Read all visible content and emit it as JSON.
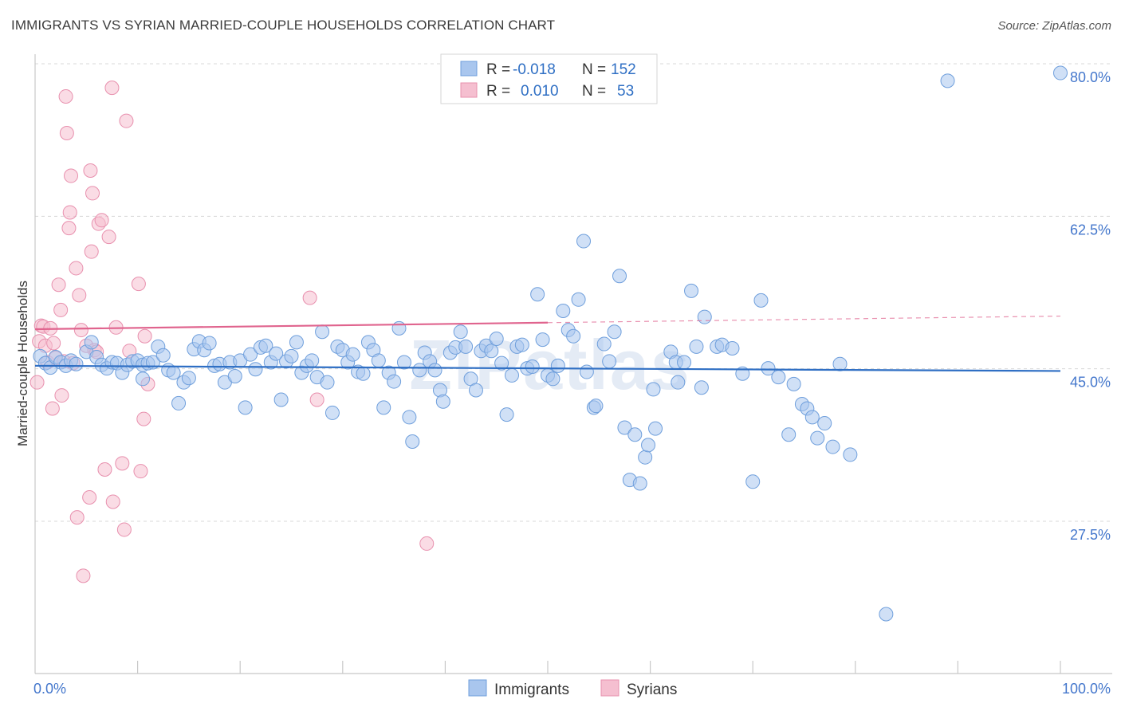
{
  "title": "IMMIGRANTS VS SYRIAN MARRIED-COUPLE HOUSEHOLDS CORRELATION CHART",
  "source": "Source: ZipAtlas.com",
  "colors": {
    "immigrants_fill": "#a9c6ee",
    "immigrants_stroke": "#6f9fdc",
    "immigrants_line": "#2f6fc4",
    "syrians_fill": "#f5bfd0",
    "syrians_stroke": "#e890ae",
    "syrians_line": "#e0648e",
    "grid": "#d8d8d8",
    "tick_label": "#4477cc"
  },
  "legend": {
    "rows": [
      {
        "r_label": "R =",
        "r_value": "-0.018",
        "n_label": "N =",
        "n_value": "152"
      },
      {
        "r_label": "R =",
        "r_value": "0.010",
        "n_label": "N =",
        "n_value": "53"
      }
    ]
  },
  "watermark": "ZIPatlas",
  "chart_data": {
    "type": "scatter",
    "title": "IMMIGRANTS VS SYRIAN MARRIED-COUPLE HOUSEHOLDS CORRELATION CHART",
    "xlabel": "",
    "ylabel": "Married-couple Households",
    "xlim": [
      0,
      100
    ],
    "ylim": [
      10,
      84
    ],
    "x_tick_labels": [
      "0.0%",
      "100.0%"
    ],
    "y_ticks": [
      27.5,
      45.0,
      62.5,
      80.0
    ],
    "y_tick_labels": [
      "27.5%",
      "45.0%",
      "62.5%",
      "80.0%"
    ],
    "legend_position": "top-center",
    "series": [
      {
        "name": "Immigrants",
        "r": -0.018,
        "n": 152,
        "trend": {
          "x": [
            0,
            100
          ],
          "y": [
            46.9,
            46.3
          ],
          "dash_from": null
        },
        "points": [
          [
            0.5,
            48.0
          ],
          [
            1.0,
            47.2
          ],
          [
            1.5,
            46.7
          ],
          [
            2.0,
            47.9
          ],
          [
            2.5,
            47.3
          ],
          [
            3.0,
            46.9
          ],
          [
            3.5,
            47.5
          ],
          [
            4.0,
            47.1
          ],
          [
            5.0,
            48.5
          ],
          [
            5.5,
            49.6
          ],
          [
            6.0,
            47.9
          ],
          [
            6.5,
            47.0
          ],
          [
            7.0,
            46.6
          ],
          [
            7.5,
            47.3
          ],
          [
            8.0,
            47.2
          ],
          [
            8.5,
            46.1
          ],
          [
            9.0,
            47.0
          ],
          [
            9.5,
            47.4
          ],
          [
            10.0,
            47.5
          ],
          [
            10.5,
            47.0
          ],
          [
            10.5,
            45.4
          ],
          [
            11.0,
            47.2
          ],
          [
            11.5,
            47.3
          ],
          [
            12.0,
            49.1
          ],
          [
            12.5,
            48.1
          ],
          [
            13.0,
            46.4
          ],
          [
            13.5,
            46.1
          ],
          [
            14.0,
            42.6
          ],
          [
            14.5,
            45.0
          ],
          [
            15.0,
            45.5
          ],
          [
            15.5,
            48.8
          ],
          [
            16.0,
            49.7
          ],
          [
            16.5,
            48.7
          ],
          [
            17.0,
            49.5
          ],
          [
            17.5,
            46.9
          ],
          [
            18.0,
            47.1
          ],
          [
            18.5,
            45.0
          ],
          [
            19.0,
            47.3
          ],
          [
            19.5,
            45.7
          ],
          [
            20.0,
            47.5
          ],
          [
            20.5,
            42.1
          ],
          [
            21.0,
            48.2
          ],
          [
            21.5,
            46.5
          ],
          [
            22.0,
            49.0
          ],
          [
            22.5,
            49.2
          ],
          [
            23.0,
            47.3
          ],
          [
            23.5,
            48.3
          ],
          [
            24.0,
            43.0
          ],
          [
            24.5,
            47.4
          ],
          [
            25.0,
            48.0
          ],
          [
            25.5,
            49.6
          ],
          [
            26.0,
            46.1
          ],
          [
            26.5,
            46.9
          ],
          [
            27.0,
            47.5
          ],
          [
            27.5,
            45.6
          ],
          [
            28.0,
            50.8
          ],
          [
            28.5,
            45.0
          ],
          [
            29.0,
            41.5
          ],
          [
            29.5,
            49.1
          ],
          [
            30.0,
            48.7
          ],
          [
            30.5,
            47.3
          ],
          [
            31.0,
            48.2
          ],
          [
            31.5,
            46.2
          ],
          [
            32.0,
            46.0
          ],
          [
            32.5,
            49.6
          ],
          [
            33.0,
            48.7
          ],
          [
            33.5,
            47.5
          ],
          [
            34.0,
            42.1
          ],
          [
            34.5,
            46.1
          ],
          [
            35.0,
            45.1
          ],
          [
            35.5,
            51.2
          ],
          [
            36.0,
            47.3
          ],
          [
            36.5,
            41.0
          ],
          [
            36.8,
            38.2
          ],
          [
            37.5,
            46.4
          ],
          [
            38.0,
            48.4
          ],
          [
            38.5,
            47.4
          ],
          [
            39.0,
            46.4
          ],
          [
            39.5,
            44.1
          ],
          [
            39.8,
            42.8
          ],
          [
            40.5,
            48.4
          ],
          [
            41.0,
            49.0
          ],
          [
            41.5,
            50.8
          ],
          [
            42.0,
            49.1
          ],
          [
            42.5,
            45.4
          ],
          [
            43.0,
            44.1
          ],
          [
            43.5,
            48.6
          ],
          [
            44.0,
            49.2
          ],
          [
            44.5,
            48.6
          ],
          [
            45.0,
            50.0
          ],
          [
            45.5,
            47.2
          ],
          [
            46.0,
            41.3
          ],
          [
            46.5,
            45.8
          ],
          [
            47.0,
            49.1
          ],
          [
            47.5,
            49.3
          ],
          [
            48.0,
            46.6
          ],
          [
            48.5,
            46.8
          ],
          [
            49.0,
            55.1
          ],
          [
            49.5,
            49.9
          ],
          [
            50.0,
            45.8
          ],
          [
            50.5,
            45.4
          ],
          [
            51.0,
            46.9
          ],
          [
            51.5,
            53.2
          ],
          [
            52.0,
            51.0
          ],
          [
            52.5,
            50.3
          ],
          [
            53.0,
            54.5
          ],
          [
            53.5,
            61.2
          ],
          [
            53.8,
            46.2
          ],
          [
            54.5,
            42.1
          ],
          [
            54.7,
            42.3
          ],
          [
            55.5,
            49.4
          ],
          [
            56.0,
            47.4
          ],
          [
            56.5,
            50.8
          ],
          [
            57.0,
            57.2
          ],
          [
            57.5,
            39.8
          ],
          [
            58.0,
            33.8
          ],
          [
            58.5,
            39.0
          ],
          [
            59.0,
            33.4
          ],
          [
            59.5,
            36.4
          ],
          [
            59.8,
            37.8
          ],
          [
            60.3,
            44.2
          ],
          [
            60.5,
            39.7
          ],
          [
            62.0,
            48.5
          ],
          [
            62.5,
            47.3
          ],
          [
            62.7,
            45.0
          ],
          [
            63.3,
            47.3
          ],
          [
            64.0,
            55.5
          ],
          [
            64.5,
            49.1
          ],
          [
            65.0,
            44.4
          ],
          [
            65.3,
            52.5
          ],
          [
            66.5,
            49.1
          ],
          [
            67.0,
            49.3
          ],
          [
            68.0,
            48.9
          ],
          [
            69.0,
            46.0
          ],
          [
            70.0,
            33.6
          ],
          [
            70.8,
            54.4
          ],
          [
            71.5,
            46.6
          ],
          [
            72.5,
            45.6
          ],
          [
            73.5,
            39.0
          ],
          [
            74.0,
            44.8
          ],
          [
            74.8,
            42.5
          ],
          [
            75.3,
            42.0
          ],
          [
            75.8,
            41.0
          ],
          [
            76.3,
            38.6
          ],
          [
            77.0,
            40.3
          ],
          [
            77.8,
            37.6
          ],
          [
            78.5,
            47.1
          ],
          [
            79.5,
            36.7
          ],
          [
            83.0,
            18.4
          ],
          [
            89.0,
            79.6
          ],
          [
            100.0,
            80.5
          ]
        ]
      },
      {
        "name": "Syrians",
        "r": 0.01,
        "n": 53,
        "trend": {
          "x": [
            0,
            100
          ],
          "y": [
            51.1,
            52.6
          ],
          "dash_from": 50
        },
        "points": [
          [
            0.2,
            45.0
          ],
          [
            0.4,
            49.7
          ],
          [
            0.6,
            51.5
          ],
          [
            0.8,
            51.4
          ],
          [
            1.0,
            49.2
          ],
          [
            1.2,
            47.3
          ],
          [
            1.5,
            51.2
          ],
          [
            1.7,
            42.0
          ],
          [
            1.8,
            49.5
          ],
          [
            2.0,
            47.8
          ],
          [
            2.3,
            56.2
          ],
          [
            2.5,
            53.3
          ],
          [
            2.6,
            43.5
          ],
          [
            2.8,
            47.4
          ],
          [
            3.0,
            77.8
          ],
          [
            3.1,
            73.6
          ],
          [
            3.3,
            62.7
          ],
          [
            3.4,
            64.5
          ],
          [
            3.5,
            68.7
          ],
          [
            3.7,
            47.2
          ],
          [
            4.0,
            58.1
          ],
          [
            4.1,
            29.5
          ],
          [
            4.3,
            55.0
          ],
          [
            4.5,
            51.0
          ],
          [
            4.7,
            22.8
          ],
          [
            5.0,
            49.2
          ],
          [
            5.3,
            31.8
          ],
          [
            5.4,
            69.3
          ],
          [
            5.5,
            60.0
          ],
          [
            5.6,
            66.7
          ],
          [
            5.8,
            48.7
          ],
          [
            6.0,
            48.5
          ],
          [
            6.2,
            63.2
          ],
          [
            6.5,
            63.6
          ],
          [
            6.8,
            35.0
          ],
          [
            7.2,
            61.7
          ],
          [
            7.5,
            78.8
          ],
          [
            7.6,
            31.3
          ],
          [
            7.9,
            51.3
          ],
          [
            8.5,
            35.7
          ],
          [
            8.7,
            28.1
          ],
          [
            8.9,
            75.0
          ],
          [
            9.2,
            48.6
          ],
          [
            10.1,
            56.3
          ],
          [
            10.3,
            34.8
          ],
          [
            10.6,
            40.8
          ],
          [
            10.7,
            50.3
          ],
          [
            11.0,
            44.8
          ],
          [
            26.8,
            54.7
          ],
          [
            27.5,
            43.0
          ],
          [
            38.2,
            26.5
          ],
          [
            47.0,
            80.4
          ]
        ]
      }
    ]
  },
  "bottom_legend": [
    {
      "label": "Immigrants"
    },
    {
      "label": "Syrians"
    }
  ]
}
